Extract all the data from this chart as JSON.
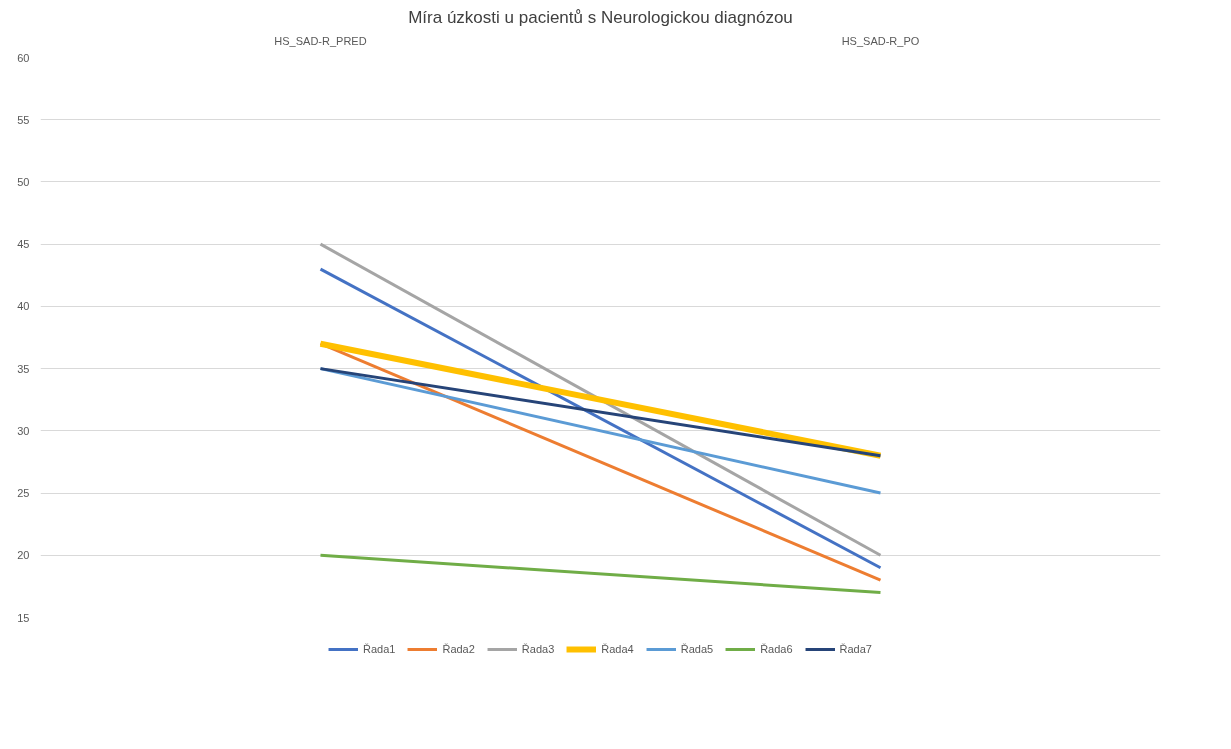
{
  "chart_data": {
    "type": "line",
    "title": "Míra úzkosti u pacientů s Neurologickou diagnózou",
    "categories": [
      "HS_SAD-R_PRED",
      "HS_SAD-R_PO"
    ],
    "series": [
      {
        "name": "Řada1",
        "color": "#4472c4",
        "values": [
          43,
          19
        ]
      },
      {
        "name": "Řada2",
        "color": "#ed7d31",
        "values": [
          37,
          18
        ]
      },
      {
        "name": "Řada3",
        "color": "#a5a5a5",
        "values": [
          45,
          20
        ]
      },
      {
        "name": "Řada4",
        "color": "#ffc000",
        "values": [
          37,
          28
        ]
      },
      {
        "name": "Řada5",
        "color": "#5b9bd5",
        "values": [
          35,
          25
        ]
      },
      {
        "name": "Řada6",
        "color": "#70ad47",
        "values": [
          20,
          17
        ]
      },
      {
        "name": "Řada7",
        "color": "#264478",
        "values": [
          35,
          28
        ]
      }
    ],
    "ylim": [
      15,
      60
    ],
    "yticks": [
      15,
      20,
      25,
      30,
      35,
      40,
      45,
      50,
      55,
      60
    ],
    "grid": "y",
    "legend": "bottom",
    "marker": "none",
    "line_style": "solid"
  }
}
